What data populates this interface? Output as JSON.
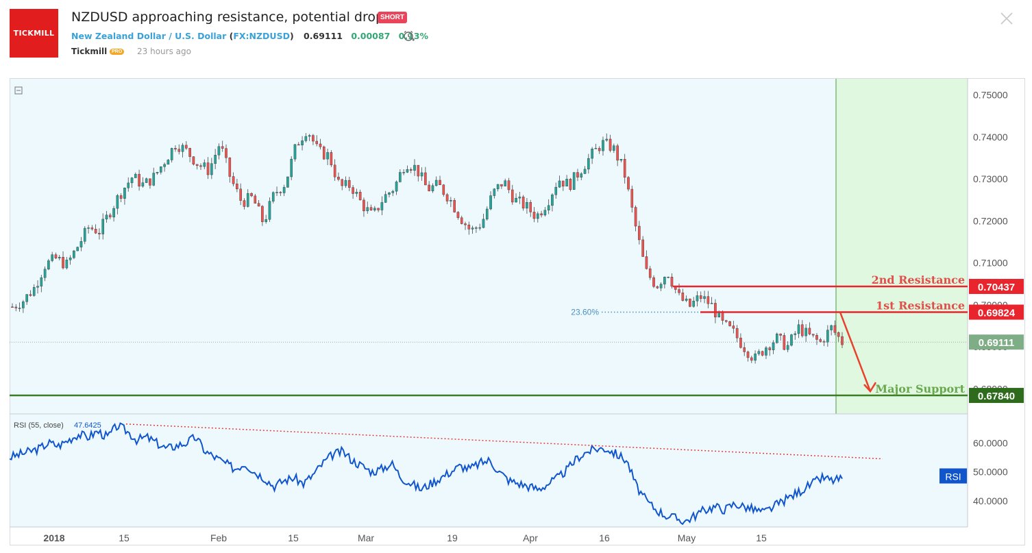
{
  "header": {
    "logo_text": "TICKMILL",
    "title": "NZDUSD approaching resistance, potential drop!",
    "badge": "SHORT",
    "pair": "New Zealand Dollar / U.S. Dollar",
    "ticker": "FX:NZDUSD",
    "price": "0.69111",
    "change": "0.00087",
    "change_pct": "0.13%",
    "author": "Tickmill",
    "author_badge": "PRO",
    "time_ago": "23 hours ago"
  },
  "colors": {
    "background": "#eef9fe",
    "forecast_zone": "#e0f8e0",
    "bull": "#26a69a",
    "bear": "#ef5350",
    "resistance": "#e8242c",
    "support": "#3b7d23",
    "support_text": "#6aa84f",
    "rsi_line": "#1155cc",
    "rsi_trend": "#e53935",
    "fib": "#4a90c2"
  },
  "chart_data": [
    {
      "type": "candlestick",
      "symbol": "NZDUSD",
      "y_axis_ticks": [
        "0.75000",
        "0.74000",
        "0.73000",
        "0.72000",
        "0.71000",
        "0.70000",
        "0.69000",
        "0.68000"
      ],
      "ylim": [
        0.674,
        0.754
      ],
      "x_axis_ticks": [
        "2018",
        "15",
        "Feb",
        "15",
        "Mar",
        "19",
        "Apr",
        "16",
        "May",
        "15"
      ],
      "approx_daily_close_path": [
        0.6995,
        0.701,
        0.704,
        0.7095,
        0.711,
        0.7095,
        0.714,
        0.7185,
        0.7175,
        0.7225,
        0.727,
        0.7305,
        0.7285,
        0.7305,
        0.7345,
        0.7385,
        0.7365,
        0.7335,
        0.732,
        0.7385,
        0.73,
        0.7245,
        0.7255,
        0.7195,
        0.7265,
        0.729,
        0.738,
        0.742,
        0.7365,
        0.7355,
        0.728,
        0.7285,
        0.724,
        0.721,
        0.7255,
        0.728,
        0.734,
        0.7325,
        0.7275,
        0.7285,
        0.7255,
        0.721,
        0.7175,
        0.7195,
        0.7265,
        0.7295,
        0.725,
        0.7235,
        0.721,
        0.7245,
        0.73,
        0.7285,
        0.732,
        0.7355,
        0.7385,
        0.7375,
        0.732,
        0.7195,
        0.708,
        0.7045,
        0.708,
        0.702,
        0.6995,
        0.702,
        0.7,
        0.6955,
        0.6935,
        0.69,
        0.687,
        0.69,
        0.692,
        0.69,
        0.6945,
        0.6925,
        0.691,
        0.6945,
        0.6911
      ],
      "annotations": [
        {
          "label": "2nd Resistance",
          "value": "0.70437"
        },
        {
          "label": "1st Resistance",
          "value": "0.69824"
        },
        {
          "label": "Major Support",
          "value": "0.67840"
        },
        {
          "label": "23.60%",
          "value": 0.69824
        }
      ],
      "last_price": "0.69111"
    },
    {
      "type": "line",
      "indicator": "RSI",
      "title": "RSI (55, close)",
      "last_value": "47.6425",
      "axis_badge": "RSI",
      "y_axis_ticks": [
        "60.0000",
        "50.0000",
        "40.0000"
      ],
      "ylim": [
        31,
        70
      ],
      "approx_path": [
        55,
        56,
        57,
        58,
        60,
        59,
        61,
        63,
        62,
        64,
        62,
        66,
        64,
        61,
        62,
        60,
        58,
        59,
        60,
        62,
        57,
        55,
        53,
        51,
        53,
        50,
        48,
        45,
        47,
        48,
        46,
        49,
        53,
        56,
        57,
        54,
        52,
        50,
        51,
        53,
        48,
        46,
        44,
        46,
        48,
        50,
        52,
        51,
        53,
        54,
        50,
        47,
        46,
        45,
        44,
        46,
        48,
        51,
        55,
        57,
        58,
        58,
        56,
        54,
        45,
        40,
        37,
        35,
        34,
        33,
        35,
        37,
        38,
        37,
        39,
        38,
        37,
        36,
        38,
        40,
        42,
        44,
        46,
        48,
        47,
        47.6
      ]
    }
  ]
}
